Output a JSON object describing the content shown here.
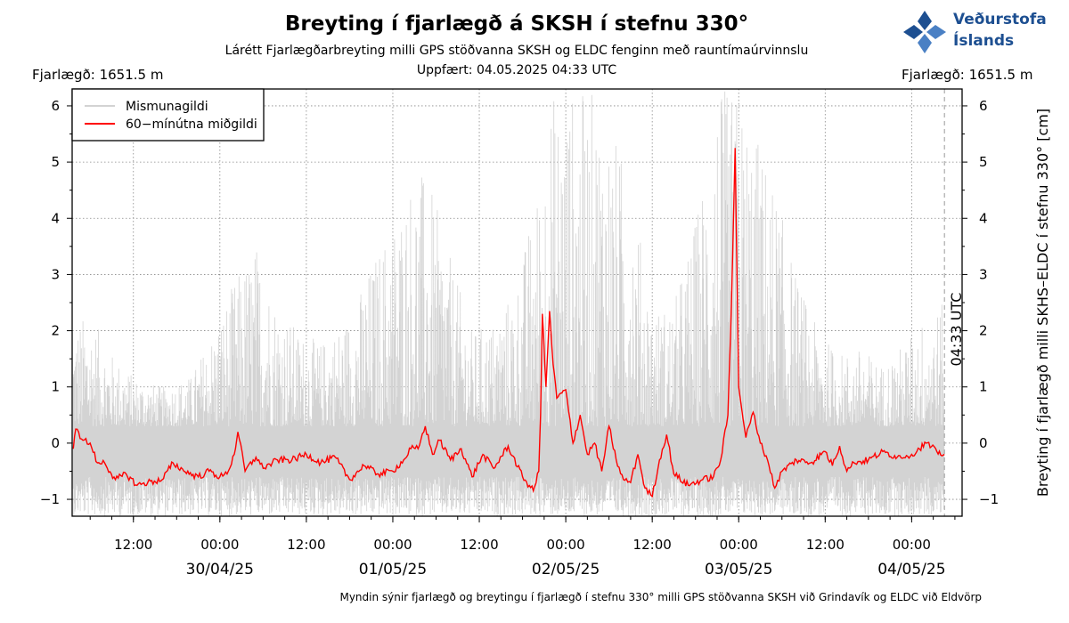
{
  "header": {
    "title": "Breyting í fjarlægð á SKSH í stefnu 330°",
    "subtitle": "Lárétt Fjarlægðarbreyting milli GPS stöðvanna SKSH og ELDC fenginn með rauntímaúrvinnslu",
    "updated": "Uppfært: 04.05.2025 04:33 UTC",
    "distance_left": "Fjarlægð: 1651.5 m",
    "distance_right": "Fjarlægð: 1651.5 m"
  },
  "logo": {
    "line1": "Veðurstofa",
    "line2": "Íslands",
    "color": "#1d4f91"
  },
  "footer": {
    "caption": "Myndin sýnir fjarlægð og breytingu í fjarlægð í stefnu 330° milli GPS stöðvanna SKSH við Grindavík og ELDC við Eldvörp"
  },
  "chart_data": {
    "type": "line",
    "ylabel": "Breyting í fjarlægð milli SKHS–ELDC í stefnu 330° [cm]",
    "ylim": [
      -1.3,
      6.3
    ],
    "yticks": [
      -1,
      0,
      1,
      2,
      3,
      4,
      5,
      6
    ],
    "ytick_labels": [
      "−1",
      "0",
      "1",
      "2",
      "3",
      "4",
      "5",
      "6"
    ],
    "xlim": [
      "2025-04-29T03:30",
      "2025-05-04T07:00"
    ],
    "xticks": [
      {
        "t": "2025-04-29T12:00",
        "label": "12:00"
      },
      {
        "t": "2025-04-30T00:00",
        "label": "00:00"
      },
      {
        "t": "2025-04-30T12:00",
        "label": "12:00"
      },
      {
        "t": "2025-05-01T00:00",
        "label": "00:00"
      },
      {
        "t": "2025-05-01T12:00",
        "label": "12:00"
      },
      {
        "t": "2025-05-02T00:00",
        "label": "00:00"
      },
      {
        "t": "2025-05-02T12:00",
        "label": "12:00"
      },
      {
        "t": "2025-05-03T00:00",
        "label": "00:00"
      },
      {
        "t": "2025-05-03T12:00",
        "label": "12:00"
      },
      {
        "t": "2025-05-04T00:00",
        "label": "00:00"
      }
    ],
    "date_labels": [
      {
        "t": "2025-04-30T00:00",
        "label": "30/04/25"
      },
      {
        "t": "2025-05-01T00:00",
        "label": "01/05/25"
      },
      {
        "t": "2025-05-02T00:00",
        "label": "02/05/25"
      },
      {
        "t": "2025-05-03T00:00",
        "label": "03/05/25"
      },
      {
        "t": "2025-05-04T00:00",
        "label": "04/05/25"
      }
    ],
    "grid": true,
    "legend_position": "top-left",
    "marker": {
      "t": "2025-05-04T04:33",
      "label": "04:33 UTC"
    },
    "series": [
      {
        "name": "Mismunagildi",
        "color": "#d3d3d3",
        "envelope": [
          {
            "t": "2025-04-29T03:40",
            "lo": -1.3,
            "hi": 2.2
          },
          {
            "t": "2025-04-29T06:00",
            "lo": -1.3,
            "hi": 2.3
          },
          {
            "t": "2025-04-29T09:00",
            "lo": -1.3,
            "hi": 1.6
          },
          {
            "t": "2025-04-29T12:00",
            "lo": -1.3,
            "hi": 1.2
          },
          {
            "t": "2025-04-29T16:00",
            "lo": -1.3,
            "hi": 1.0
          },
          {
            "t": "2025-04-29T20:00",
            "lo": -1.3,
            "hi": 1.2
          },
          {
            "t": "2025-04-29T23:00",
            "lo": -1.3,
            "hi": 2.0
          },
          {
            "t": "2025-04-30T02:00",
            "lo": -1.3,
            "hi": 2.9
          },
          {
            "t": "2025-04-30T05:00",
            "lo": -1.3,
            "hi": 3.6
          },
          {
            "t": "2025-04-30T08:00",
            "lo": -1.3,
            "hi": 2.5
          },
          {
            "t": "2025-04-30T11:00",
            "lo": -1.3,
            "hi": 2.0
          },
          {
            "t": "2025-04-30T14:00",
            "lo": -1.3,
            "hi": 1.8
          },
          {
            "t": "2025-04-30T18:00",
            "lo": -1.3,
            "hi": 2.3
          },
          {
            "t": "2025-04-30T22:00",
            "lo": -1.3,
            "hi": 3.5
          },
          {
            "t": "2025-05-01T01:00",
            "lo": -1.3,
            "hi": 4.3
          },
          {
            "t": "2025-05-01T03:00",
            "lo": -1.3,
            "hi": 5.0
          },
          {
            "t": "2025-05-01T05:00",
            "lo": -1.3,
            "hi": 4.7
          },
          {
            "t": "2025-05-01T08:00",
            "lo": -1.3,
            "hi": 3.3
          },
          {
            "t": "2025-05-01T11:00",
            "lo": -1.3,
            "hi": 2.0
          },
          {
            "t": "2025-05-01T14:00",
            "lo": -1.3,
            "hi": 2.2
          },
          {
            "t": "2025-05-01T17:00",
            "lo": -1.3,
            "hi": 2.8
          },
          {
            "t": "2025-05-01T20:00",
            "lo": -1.3,
            "hi": 4.5
          },
          {
            "t": "2025-05-01T22:00",
            "lo": -1.3,
            "hi": 6.3
          },
          {
            "t": "2025-05-02T01:00",
            "lo": -1.3,
            "hi": 6.3
          },
          {
            "t": "2025-05-02T04:00",
            "lo": -1.3,
            "hi": 6.3
          },
          {
            "t": "2025-05-02T06:00",
            "lo": -1.3,
            "hi": 5.8
          },
          {
            "t": "2025-05-02T09:00",
            "lo": -1.3,
            "hi": 4.7
          },
          {
            "t": "2025-05-02T12:00",
            "lo": -1.3,
            "hi": 2.4
          },
          {
            "t": "2025-05-02T15:00",
            "lo": -1.3,
            "hi": 2.5
          },
          {
            "t": "2025-05-02T18:00",
            "lo": -1.3,
            "hi": 4.0
          },
          {
            "t": "2025-05-02T21:00",
            "lo": -1.3,
            "hi": 6.3
          },
          {
            "t": "2025-05-03T00:00",
            "lo": -1.3,
            "hi": 6.3
          },
          {
            "t": "2025-05-03T03:00",
            "lo": -1.3,
            "hi": 5.4
          },
          {
            "t": "2025-05-03T05:00",
            "lo": -1.3,
            "hi": 4.6
          },
          {
            "t": "2025-05-03T08:00",
            "lo": -1.3,
            "hi": 3.0
          },
          {
            "t": "2025-05-03T11:00",
            "lo": -1.3,
            "hi": 2.0
          },
          {
            "t": "2025-05-03T14:00",
            "lo": -1.3,
            "hi": 1.6
          },
          {
            "t": "2025-05-03T17:00",
            "lo": -1.3,
            "hi": 1.7
          },
          {
            "t": "2025-05-03T20:00",
            "lo": -1.3,
            "hi": 1.4
          },
          {
            "t": "2025-05-03T23:00",
            "lo": -1.3,
            "hi": 1.8
          },
          {
            "t": "2025-05-04T02:00",
            "lo": -1.3,
            "hi": 2.3
          },
          {
            "t": "2025-05-04T04:33",
            "lo": -1.3,
            "hi": 2.5
          }
        ]
      },
      {
        "name": "60−mínútna miðgildi",
        "color": "#ff0000",
        "points": [
          {
            "t": "2025-04-29T03:40",
            "y": -0.1
          },
          {
            "t": "2025-04-29T04:00",
            "y": 0.25
          },
          {
            "t": "2025-04-29T05:00",
            "y": 0.05
          },
          {
            "t": "2025-04-29T06:00",
            "y": 0.0
          },
          {
            "t": "2025-04-29T07:00",
            "y": -0.35
          },
          {
            "t": "2025-04-29T08:00",
            "y": -0.35
          },
          {
            "t": "2025-04-29T09:30",
            "y": -0.65
          },
          {
            "t": "2025-04-29T11:00",
            "y": -0.55
          },
          {
            "t": "2025-04-29T12:30",
            "y": -0.75
          },
          {
            "t": "2025-04-29T14:00",
            "y": -0.7
          },
          {
            "t": "2025-04-29T16:00",
            "y": -0.65
          },
          {
            "t": "2025-04-29T17:30",
            "y": -0.35
          },
          {
            "t": "2025-04-29T19:00",
            "y": -0.5
          },
          {
            "t": "2025-04-29T21:00",
            "y": -0.6
          },
          {
            "t": "2025-04-29T22:30",
            "y": -0.5
          },
          {
            "t": "2025-04-30T00:00",
            "y": -0.6
          },
          {
            "t": "2025-04-30T01:00",
            "y": -0.55
          },
          {
            "t": "2025-04-30T02:00",
            "y": -0.2
          },
          {
            "t": "2025-04-30T02:30",
            "y": 0.2
          },
          {
            "t": "2025-04-30T03:30",
            "y": -0.5
          },
          {
            "t": "2025-04-30T05:00",
            "y": -0.25
          },
          {
            "t": "2025-04-30T06:00",
            "y": -0.45
          },
          {
            "t": "2025-04-30T08:00",
            "y": -0.3
          },
          {
            "t": "2025-04-30T10:00",
            "y": -0.3
          },
          {
            "t": "2025-04-30T12:00",
            "y": -0.2
          },
          {
            "t": "2025-04-30T14:00",
            "y": -0.35
          },
          {
            "t": "2025-04-30T16:00",
            "y": -0.25
          },
          {
            "t": "2025-04-30T18:00",
            "y": -0.65
          },
          {
            "t": "2025-04-30T20:00",
            "y": -0.4
          },
          {
            "t": "2025-04-30T22:00",
            "y": -0.55
          },
          {
            "t": "2025-05-01T00:00",
            "y": -0.5
          },
          {
            "t": "2025-05-01T01:30",
            "y": -0.3
          },
          {
            "t": "2025-05-01T02:30",
            "y": -0.1
          },
          {
            "t": "2025-05-01T03:30",
            "y": -0.1
          },
          {
            "t": "2025-05-01T04:30",
            "y": 0.3
          },
          {
            "t": "2025-05-01T05:30",
            "y": -0.2
          },
          {
            "t": "2025-05-01T06:30",
            "y": 0.05
          },
          {
            "t": "2025-05-01T08:00",
            "y": -0.3
          },
          {
            "t": "2025-05-01T09:30",
            "y": -0.1
          },
          {
            "t": "2025-05-01T11:00",
            "y": -0.6
          },
          {
            "t": "2025-05-01T12:30",
            "y": -0.2
          },
          {
            "t": "2025-05-01T14:00",
            "y": -0.45
          },
          {
            "t": "2025-05-01T16:00",
            "y": -0.05
          },
          {
            "t": "2025-05-01T18:00",
            "y": -0.6
          },
          {
            "t": "2025-05-01T19:30",
            "y": -0.85
          },
          {
            "t": "2025-05-01T20:15",
            "y": -0.5
          },
          {
            "t": "2025-05-01T20:30",
            "y": 0.5
          },
          {
            "t": "2025-05-01T20:45",
            "y": 2.3
          },
          {
            "t": "2025-05-01T21:15",
            "y": 1.0
          },
          {
            "t": "2025-05-01T21:45",
            "y": 2.35
          },
          {
            "t": "2025-05-01T22:15",
            "y": 1.4
          },
          {
            "t": "2025-05-01T22:45",
            "y": 0.8
          },
          {
            "t": "2025-05-02T00:00",
            "y": 0.95
          },
          {
            "t": "2025-05-02T01:00",
            "y": 0.0
          },
          {
            "t": "2025-05-02T02:00",
            "y": 0.5
          },
          {
            "t": "2025-05-02T03:00",
            "y": -0.2
          },
          {
            "t": "2025-05-02T04:00",
            "y": 0.0
          },
          {
            "t": "2025-05-02T05:00",
            "y": -0.5
          },
          {
            "t": "2025-05-02T06:00",
            "y": 0.3
          },
          {
            "t": "2025-05-02T07:00",
            "y": -0.3
          },
          {
            "t": "2025-05-02T08:00",
            "y": -0.65
          },
          {
            "t": "2025-05-02T09:00",
            "y": -0.7
          },
          {
            "t": "2025-05-02T10:00",
            "y": -0.2
          },
          {
            "t": "2025-05-02T11:00",
            "y": -0.8
          },
          {
            "t": "2025-05-02T12:00",
            "y": -0.95
          },
          {
            "t": "2025-05-02T13:00",
            "y": -0.3
          },
          {
            "t": "2025-05-02T14:00",
            "y": 0.15
          },
          {
            "t": "2025-05-02T15:00",
            "y": -0.55
          },
          {
            "t": "2025-05-02T17:00",
            "y": -0.75
          },
          {
            "t": "2025-05-02T19:00",
            "y": -0.65
          },
          {
            "t": "2025-05-02T20:30",
            "y": -0.6
          },
          {
            "t": "2025-05-02T21:30",
            "y": -0.3
          },
          {
            "t": "2025-05-02T22:30",
            "y": 0.5
          },
          {
            "t": "2025-05-02T23:00",
            "y": 2.5
          },
          {
            "t": "2025-05-02T23:30",
            "y": 5.25
          },
          {
            "t": "2025-05-03T00:00",
            "y": 1.0
          },
          {
            "t": "2025-05-03T01:00",
            "y": 0.1
          },
          {
            "t": "2025-05-03T02:00",
            "y": 0.55
          },
          {
            "t": "2025-05-03T03:00",
            "y": 0.0
          },
          {
            "t": "2025-05-03T04:00",
            "y": -0.3
          },
          {
            "t": "2025-05-03T05:00",
            "y": -0.8
          },
          {
            "t": "2025-05-03T06:00",
            "y": -0.5
          },
          {
            "t": "2025-05-03T08:00",
            "y": -0.3
          },
          {
            "t": "2025-05-03T10:00",
            "y": -0.35
          },
          {
            "t": "2025-05-03T12:00",
            "y": -0.15
          },
          {
            "t": "2025-05-03T13:00",
            "y": -0.4
          },
          {
            "t": "2025-05-03T14:00",
            "y": -0.05
          },
          {
            "t": "2025-05-03T15:00",
            "y": -0.5
          },
          {
            "t": "2025-05-03T16:00",
            "y": -0.35
          },
          {
            "t": "2025-05-03T18:00",
            "y": -0.3
          },
          {
            "t": "2025-05-03T20:00",
            "y": -0.15
          },
          {
            "t": "2025-05-03T22:00",
            "y": -0.25
          },
          {
            "t": "2025-05-04T00:00",
            "y": -0.2
          },
          {
            "t": "2025-05-04T02:00",
            "y": 0.0
          },
          {
            "t": "2025-05-04T03:30",
            "y": -0.15
          },
          {
            "t": "2025-05-04T04:33",
            "y": -0.2
          }
        ]
      }
    ]
  }
}
